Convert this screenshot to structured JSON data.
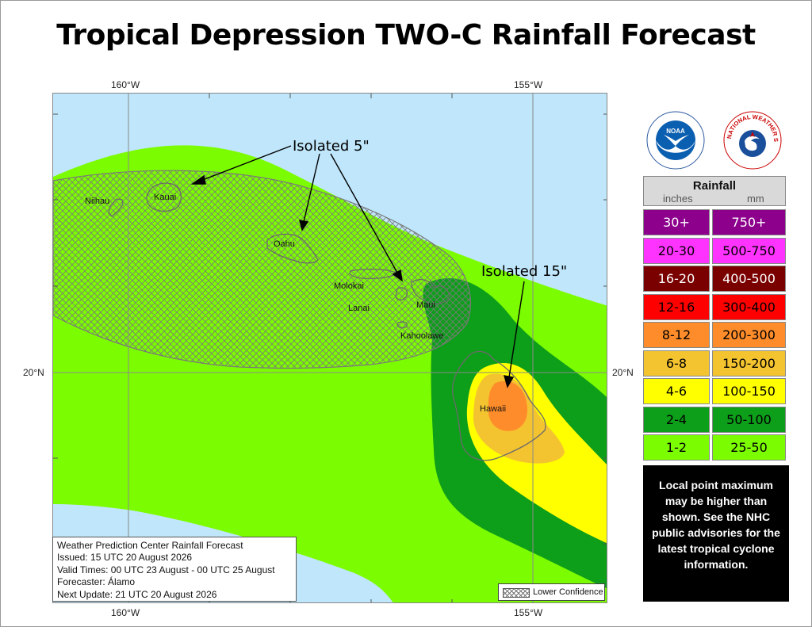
{
  "title": "Tropical Depression TWO-C Rainfall Forecast",
  "axes": {
    "lon_top_left": "160°W",
    "lon_top_right": "155°W",
    "lon_bottom_left": "160°W",
    "lon_bottom_right": "155°W",
    "lat_left": "20°N",
    "lat_right": "20°N"
  },
  "islands": [
    "Niihau",
    "Kauai",
    "Oahu",
    "Molokai",
    "Lanai",
    "Maui",
    "Kahoolawe",
    "Hawaii"
  ],
  "annotations": {
    "isolated_5": "Isolated 5\"",
    "isolated_15": "Isolated 15\""
  },
  "info_box": {
    "line1": "Weather Prediction Center Rainfall Forecast",
    "line2": "Issued: 15 UTC 20 August 2026",
    "line3": "Valid Times: 00 UTC 23 August - 00 UTC 25 August",
    "line4": "Forecaster: Álamo",
    "line5": "Next Update: 21 UTC 20 August 2026"
  },
  "lower_confidence_label": "Lower Confidence",
  "logos": {
    "noaa_text": "NOAA",
    "nws_text": "NATIONAL WEATHER SERVICE"
  },
  "legend": {
    "heading": "Rainfall",
    "unit_in": "inches",
    "unit_mm": "mm",
    "rows": [
      {
        "inches": "30+",
        "mm": "750+",
        "color": "#8c008c",
        "text": "#ffffff"
      },
      {
        "inches": "20-30",
        "mm": "500-750",
        "color": "#ff33ff",
        "text": "#000000"
      },
      {
        "inches": "16-20",
        "mm": "400-500",
        "color": "#7a0000",
        "text": "#ffffff"
      },
      {
        "inches": "12-16",
        "mm": "300-400",
        "color": "#ff0000",
        "text": "#000000"
      },
      {
        "inches": "8-12",
        "mm": "200-300",
        "color": "#ff8c2a",
        "text": "#000000"
      },
      {
        "inches": "6-8",
        "mm": "150-200",
        "color": "#f4c430",
        "text": "#000000"
      },
      {
        "inches": "4-6",
        "mm": "100-150",
        "color": "#ffff00",
        "text": "#000000"
      },
      {
        "inches": "2-4",
        "mm": "50-100",
        "color": "#0d9e1a",
        "text": "#000000"
      },
      {
        "inches": "1-2",
        "mm": "25-50",
        "color": "#7cfc00",
        "text": "#000000"
      }
    ]
  },
  "note": "Local point maximum may be higher than shown. See the NHC public advisories for the latest tropical cyclone information.",
  "colors": {
    "ocean": "#bfe6fb",
    "grid": "#8a8a8a",
    "island_outline": "#6b6b6b"
  }
}
